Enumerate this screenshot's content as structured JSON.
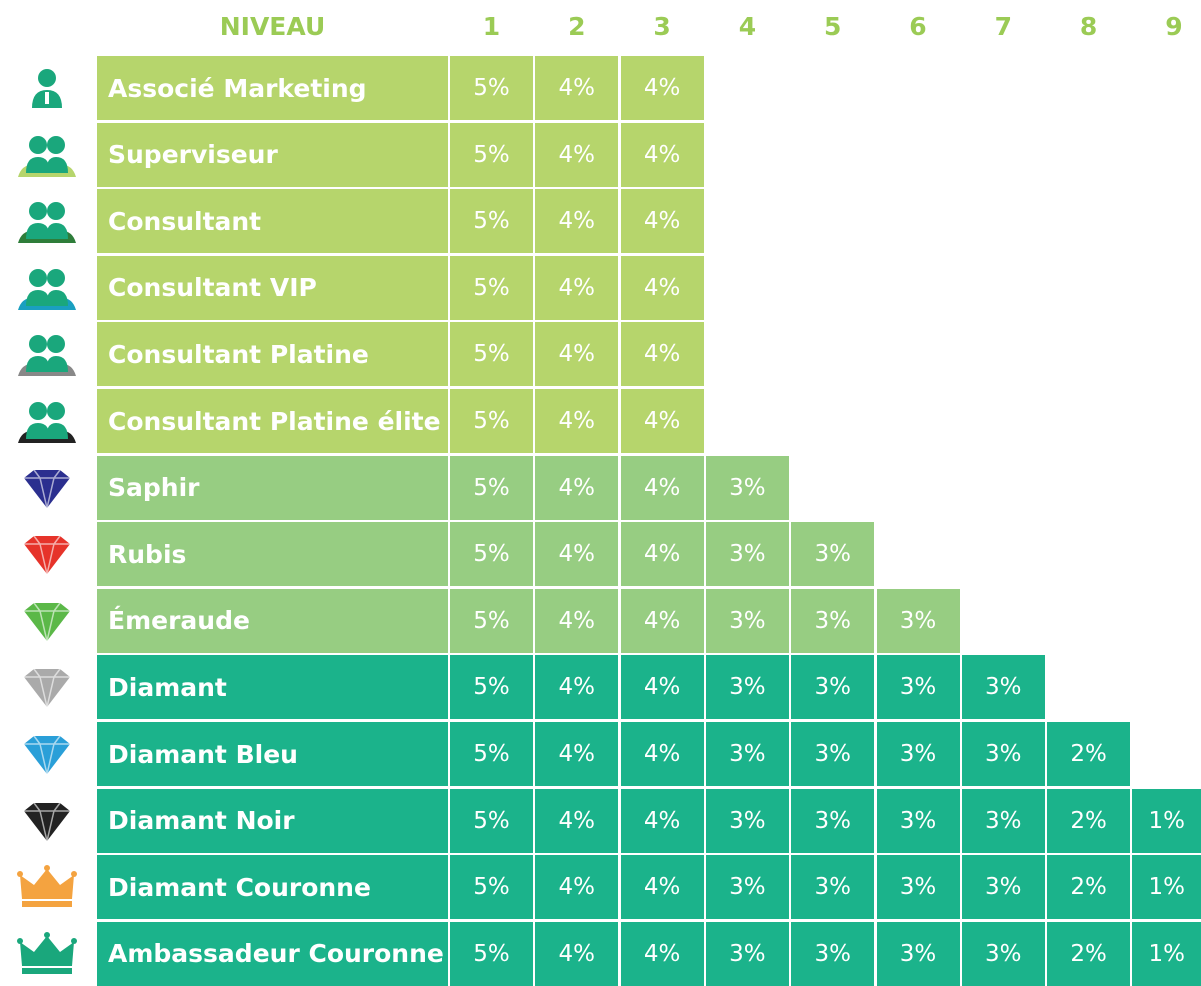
{
  "header": {
    "label": "NIVEAU",
    "levels": [
      "1",
      "2",
      "3",
      "4",
      "5",
      "6",
      "7",
      "8",
      "9"
    ]
  },
  "rows": [
    {
      "name": "Associé Marketing",
      "cells": [
        "5%",
        "4%",
        "4%"
      ]
    },
    {
      "name": "Superviseur",
      "cells": [
        "5%",
        "4%",
        "4%"
      ]
    },
    {
      "name": "Consultant",
      "cells": [
        "5%",
        "4%",
        "4%"
      ]
    },
    {
      "name": "Consultant VIP",
      "cells": [
        "5%",
        "4%",
        "4%"
      ]
    },
    {
      "name": "Consultant Platine",
      "cells": [
        "5%",
        "4%",
        "4%"
      ]
    },
    {
      "name": "Consultant Platine élite",
      "cells": [
        "5%",
        "4%",
        "4%"
      ]
    },
    {
      "name": "Saphir",
      "cells": [
        "5%",
        "4%",
        "4%",
        "3%"
      ]
    },
    {
      "name": "Rubis",
      "cells": [
        "5%",
        "4%",
        "4%",
        "3%",
        "3%"
      ]
    },
    {
      "name": "Émeraude",
      "cells": [
        "5%",
        "4%",
        "4%",
        "3%",
        "3%",
        "3%"
      ]
    },
    {
      "name": "Diamant",
      "cells": [
        "5%",
        "4%",
        "4%",
        "3%",
        "3%",
        "3%",
        "3%"
      ]
    },
    {
      "name": "Diamant Bleu",
      "cells": [
        "5%",
        "4%",
        "4%",
        "3%",
        "3%",
        "3%",
        "3%",
        "2%"
      ]
    },
    {
      "name": "Diamant Noir",
      "cells": [
        "5%",
        "4%",
        "4%",
        "3%",
        "3%",
        "3%",
        "3%",
        "2%",
        "1%"
      ]
    },
    {
      "name": "Diamant Couronne",
      "cells": [
        "5%",
        "4%",
        "4%",
        "3%",
        "3%",
        "3%",
        "3%",
        "2%",
        "1%"
      ]
    },
    {
      "name": "Ambassadeur Couronne",
      "cells": [
        "5%",
        "4%",
        "4%",
        "3%",
        "3%",
        "3%",
        "3%",
        "2%",
        "1%"
      ]
    }
  ]
}
